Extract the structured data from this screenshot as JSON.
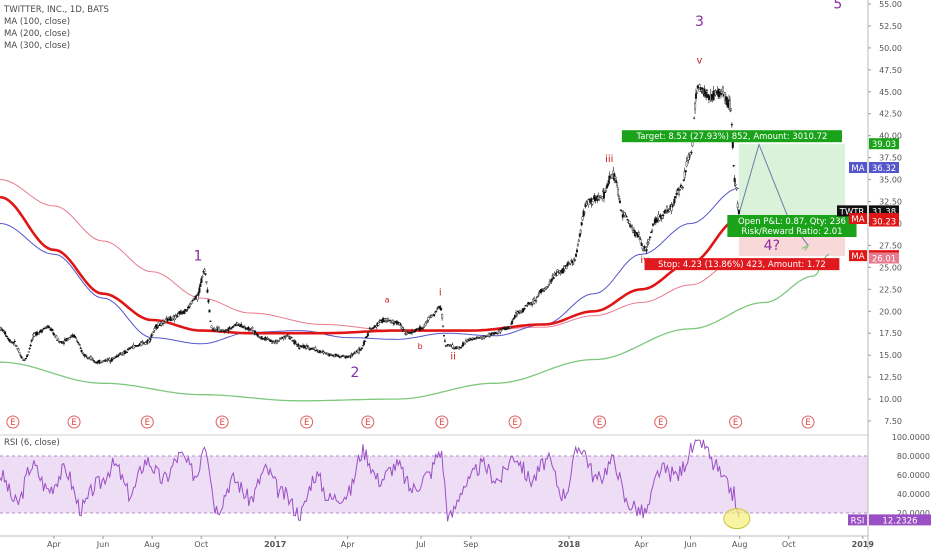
{
  "legend": {
    "title": "TWITTER, INC., 1D, BATS",
    "ma100": "MA (100, close)",
    "ma200": "MA (200, close)",
    "ma300": "MA (300, close)",
    "rsi": "RSI (6, close)"
  },
  "colors": {
    "candle": "#111111",
    "ma100": "#5555cc",
    "ma200": "#e01616",
    "ma300": "#e87b8f",
    "long_ma": "#7ec87e",
    "wave": "#8a2ea2",
    "subwave": "#c81a1a",
    "rsi": "#9a4fc4",
    "target_bg": "#1aa31a",
    "stop_bg": "#e0191e"
  },
  "chart_data": {
    "type": "line",
    "price_axis": {
      "min": 7.5,
      "max": 55.0,
      "ticks": [
        "55.00",
        "52.50",
        "50.00",
        "47.50",
        "45.00",
        "42.50",
        "40.00",
        "37.50",
        "35.00",
        "32.50",
        "30.00",
        "27.50",
        "25.00",
        "22.50",
        "20.00",
        "17.50",
        "15.00",
        "12.50",
        "10.00",
        "7.50"
      ]
    },
    "rsi_axis": {
      "min": 0,
      "max": 100,
      "ticks": [
        "100.0000",
        "80.0000",
        "60.0000",
        "40.0000",
        "20.0000"
      ],
      "band": [
        20,
        80
      ]
    },
    "x_axis": {
      "start": "2016-01-25",
      "end": "2019-01-05",
      "ticks": [
        {
          "label": "Apr",
          "date": "2016-04-01"
        },
        {
          "label": "Jun",
          "date": "2016-06-01"
        },
        {
          "label": "Aug",
          "date": "2016-08-01"
        },
        {
          "label": "Oct",
          "date": "2016-10-01"
        },
        {
          "label": "2017",
          "date": "2017-01-01"
        },
        {
          "label": "Apr",
          "date": "2017-04-01"
        },
        {
          "label": "Jul",
          "date": "2017-07-01"
        },
        {
          "label": "Sep",
          "date": "2017-09-01"
        },
        {
          "label": "2018",
          "date": "2018-01-01"
        },
        {
          "label": "Apr",
          "date": "2018-04-01"
        },
        {
          "label": "Jun",
          "date": "2018-06-01"
        },
        {
          "label": "Aug",
          "date": "2018-08-01"
        },
        {
          "label": "Oct",
          "date": "2018-10-01"
        },
        {
          "label": "2019",
          "date": "2019-01-01"
        }
      ]
    },
    "price_series": {
      "name": "TWTR",
      "points": [
        [
          "2016-01-25",
          18.0
        ],
        [
          "2016-02-10",
          16.5
        ],
        [
          "2016-02-24",
          14.5
        ],
        [
          "2016-03-10",
          17.5
        ],
        [
          "2016-03-24",
          18.2
        ],
        [
          "2016-04-10",
          16.5
        ],
        [
          "2016-04-25",
          17.2
        ],
        [
          "2016-05-10",
          15.0
        ],
        [
          "2016-05-25",
          14.2
        ],
        [
          "2016-06-10",
          14.5
        ],
        [
          "2016-06-25",
          15.2
        ],
        [
          "2016-07-10",
          16.0
        ],
        [
          "2016-07-25",
          16.5
        ],
        [
          "2016-08-10",
          18.5
        ],
        [
          "2016-08-25",
          19.2
        ],
        [
          "2016-09-10",
          20.0
        ],
        [
          "2016-09-25",
          21.5
        ],
        [
          "2016-10-05",
          24.5
        ],
        [
          "2016-10-15",
          18.0
        ],
        [
          "2016-10-30",
          17.8
        ],
        [
          "2016-11-15",
          18.5
        ],
        [
          "2016-11-30",
          18.0
        ],
        [
          "2016-12-15",
          17.0
        ],
        [
          "2017-01-01",
          16.5
        ],
        [
          "2017-01-15",
          17.2
        ],
        [
          "2017-02-01",
          16.0
        ],
        [
          "2017-02-15",
          15.8
        ],
        [
          "2017-03-01",
          15.3
        ],
        [
          "2017-03-15",
          15.0
        ],
        [
          "2017-04-01",
          14.8
        ],
        [
          "2017-04-15",
          15.5
        ],
        [
          "2017-05-01",
          18.0
        ],
        [
          "2017-05-15",
          19.0
        ],
        [
          "2017-06-01",
          18.7
        ],
        [
          "2017-06-15",
          17.5
        ],
        [
          "2017-07-01",
          18.0
        ],
        [
          "2017-07-15",
          19.5
        ],
        [
          "2017-07-25",
          20.5
        ],
        [
          "2017-08-01",
          16.2
        ],
        [
          "2017-08-15",
          15.8
        ],
        [
          "2017-09-01",
          16.8
        ],
        [
          "2017-09-15",
          17.0
        ],
        [
          "2017-10-01",
          17.5
        ],
        [
          "2017-10-15",
          18.0
        ],
        [
          "2017-11-01",
          20.0
        ],
        [
          "2017-11-15",
          21.0
        ],
        [
          "2017-12-01",
          22.5
        ],
        [
          "2017-12-20",
          24.5
        ],
        [
          "2018-01-05",
          25.5
        ],
        [
          "2018-01-25",
          32.5
        ],
        [
          "2018-02-10",
          33.0
        ],
        [
          "2018-02-25",
          35.5
        ],
        [
          "2018-03-10",
          31.0
        ],
        [
          "2018-03-25",
          29.0
        ],
        [
          "2018-04-05",
          27.0
        ],
        [
          "2018-04-20",
          30.5
        ],
        [
          "2018-05-05",
          31.5
        ],
        [
          "2018-05-20",
          34.0
        ],
        [
          "2018-06-01",
          38.0
        ],
        [
          "2018-06-10",
          45.5
        ],
        [
          "2018-06-25",
          44.5
        ],
        [
          "2018-07-10",
          45.0
        ],
        [
          "2018-07-20",
          43.5
        ],
        [
          "2018-07-27",
          34.5
        ],
        [
          "2018-07-31",
          31.38
        ]
      ]
    },
    "rsi_series": {
      "name": "RSI",
      "last": "12.2326",
      "points": [
        [
          "2016-01-25",
          60
        ],
        [
          "2016-02-15",
          30
        ],
        [
          "2016-03-05",
          70
        ],
        [
          "2016-03-25",
          45
        ],
        [
          "2016-04-15",
          65
        ],
        [
          "2016-05-05",
          25
        ],
        [
          "2016-05-25",
          50
        ],
        [
          "2016-06-15",
          70
        ],
        [
          "2016-07-05",
          40
        ],
        [
          "2016-07-25",
          75
        ],
        [
          "2016-08-15",
          55
        ],
        [
          "2016-09-05",
          80
        ],
        [
          "2016-09-25",
          60
        ],
        [
          "2016-10-05",
          95
        ],
        [
          "2016-10-20",
          25
        ],
        [
          "2016-11-10",
          55
        ],
        [
          "2016-12-01",
          35
        ],
        [
          "2016-12-20",
          65
        ],
        [
          "2017-01-10",
          40
        ],
        [
          "2017-02-01",
          20
        ],
        [
          "2017-02-20",
          60
        ],
        [
          "2017-03-10",
          35
        ],
        [
          "2017-04-01",
          40
        ],
        [
          "2017-04-20",
          85
        ],
        [
          "2017-05-10",
          55
        ],
        [
          "2017-06-01",
          70
        ],
        [
          "2017-06-20",
          45
        ],
        [
          "2017-07-10",
          60
        ],
        [
          "2017-07-25",
          85
        ],
        [
          "2017-08-05",
          15
        ],
        [
          "2017-08-25",
          50
        ],
        [
          "2017-09-15",
          70
        ],
        [
          "2017-10-05",
          55
        ],
        [
          "2017-10-25",
          80
        ],
        [
          "2017-11-15",
          55
        ],
        [
          "2017-12-05",
          75
        ],
        [
          "2017-12-25",
          40
        ],
        [
          "2018-01-15",
          90
        ],
        [
          "2018-02-05",
          55
        ],
        [
          "2018-02-25",
          75
        ],
        [
          "2018-03-15",
          30
        ],
        [
          "2018-04-05",
          20
        ],
        [
          "2018-04-25",
          65
        ],
        [
          "2018-05-15",
          60
        ],
        [
          "2018-06-05",
          88
        ],
        [
          "2018-06-15",
          95
        ],
        [
          "2018-07-01",
          70
        ],
        [
          "2018-07-15",
          50
        ],
        [
          "2018-07-25",
          40
        ],
        [
          "2018-07-31",
          12
        ]
      ]
    },
    "ma100": {
      "name": "MA (100, close)",
      "points": [
        [
          "2016-01-25",
          30.0
        ],
        [
          "2016-04-01",
          26.5
        ],
        [
          "2016-06-01",
          21.5
        ],
        [
          "2016-08-01",
          17.0
        ],
        [
          "2016-10-01",
          16.3
        ],
        [
          "2016-12-01",
          17.6
        ],
        [
          "2017-02-01",
          17.8
        ],
        [
          "2017-04-01",
          17.0
        ],
        [
          "2017-06-01",
          16.8
        ],
        [
          "2017-08-01",
          17.5
        ],
        [
          "2017-10-01",
          17.2
        ],
        [
          "2017-12-01",
          18.5
        ],
        [
          "2018-02-01",
          22.0
        ],
        [
          "2018-04-01",
          26.5
        ],
        [
          "2018-06-01",
          30.0
        ],
        [
          "2018-07-31",
          34.0
        ]
      ]
    },
    "ma200": {
      "name": "MA (200, close)",
      "points": [
        [
          "2016-01-25",
          33.0
        ],
        [
          "2016-04-01",
          27.0
        ],
        [
          "2016-06-01",
          22.0
        ],
        [
          "2016-08-01",
          19.0
        ],
        [
          "2016-10-01",
          17.8
        ],
        [
          "2016-12-01",
          17.5
        ],
        [
          "2017-03-01",
          17.5
        ],
        [
          "2017-06-01",
          17.8
        ],
        [
          "2017-09-01",
          17.8
        ],
        [
          "2017-12-01",
          18.5
        ],
        [
          "2018-02-01",
          20.0
        ],
        [
          "2018-04-01",
          22.5
        ],
        [
          "2018-06-01",
          25.5
        ],
        [
          "2018-07-31",
          30.5
        ]
      ]
    },
    "ma300": {
      "name": "MA (300, close)",
      "points": [
        [
          "2016-01-25",
          35.0
        ],
        [
          "2016-04-01",
          32.0
        ],
        [
          "2016-06-01",
          28.0
        ],
        [
          "2016-08-01",
          24.5
        ],
        [
          "2016-10-01",
          21.5
        ],
        [
          "2016-12-01",
          19.8
        ],
        [
          "2017-03-01",
          18.5
        ],
        [
          "2017-06-01",
          17.8
        ],
        [
          "2017-09-01",
          17.8
        ],
        [
          "2017-12-01",
          18.2
        ],
        [
          "2018-02-01",
          19.5
        ],
        [
          "2018-04-01",
          21.0
        ],
        [
          "2018-06-01",
          23.0
        ],
        [
          "2018-07-31",
          26.0
        ]
      ]
    },
    "long_ma": {
      "points": [
        [
          "2016-01-25",
          14.2
        ],
        [
          "2016-06-01",
          11.8
        ],
        [
          "2016-10-01",
          10.5
        ],
        [
          "2017-02-01",
          9.8
        ],
        [
          "2017-06-01",
          10.0
        ],
        [
          "2017-10-01",
          11.8
        ],
        [
          "2018-02-01",
          14.5
        ],
        [
          "2018-06-01",
          18.0
        ],
        [
          "2018-09-01",
          21.0
        ],
        [
          "2018-11-01",
          24.0
        ],
        [
          "2018-11-20",
          26.5
        ]
      ]
    },
    "projection": {
      "points": [
        [
          "2018-07-31",
          31.0
        ],
        [
          "2018-08-25",
          39.0
        ],
        [
          "2018-10-01",
          30.5
        ],
        [
          "2018-10-25",
          27.5
        ]
      ]
    },
    "waves": [
      {
        "label": "1",
        "date": "2016-09-27",
        "price": 25.8,
        "size": "big"
      },
      {
        "label": "2",
        "date": "2017-04-10",
        "price": 12.5,
        "size": "big"
      },
      {
        "label": "3",
        "date": "2018-06-12",
        "price": 52.5,
        "size": "big"
      },
      {
        "label": "4?",
        "date": "2018-09-10",
        "price": 27.0,
        "size": "big"
      },
      {
        "label": "5",
        "date": "2018-12-01",
        "price": 54.5,
        "size": "big"
      },
      {
        "label": "i",
        "date": "2017-07-25",
        "price": 21.8,
        "size": "small"
      },
      {
        "label": "ii",
        "date": "2017-08-10",
        "price": 14.5,
        "size": "small"
      },
      {
        "label": "iii",
        "date": "2018-02-20",
        "price": 37.0,
        "size": "small"
      },
      {
        "label": "iv",
        "date": "2018-04-05",
        "price": 25.5,
        "size": "small"
      },
      {
        "label": "v",
        "date": "2018-06-12",
        "price": 48.2,
        "size": "small"
      },
      {
        "label": "a",
        "date": "2017-05-20",
        "price": 21.0,
        "size": "tiny"
      },
      {
        "label": "b",
        "date": "2017-06-30",
        "price": 15.7,
        "size": "tiny"
      },
      {
        "label": "a",
        "date": "2018-07-31",
        "price": 29.3,
        "size": "tinyblack"
      },
      {
        "label": "c",
        "date": "2018-09-25",
        "price": 30.2,
        "size": "tinyblack"
      }
    ],
    "earnings_dates": [
      "2016-02-10",
      "2016-04-26",
      "2016-07-26",
      "2016-10-27",
      "2017-02-09",
      "2017-04-26",
      "2017-07-27",
      "2017-10-26",
      "2018-02-08",
      "2018-04-25",
      "2018-07-27",
      "2018-10-25"
    ],
    "earnings_label": "E",
    "position": {
      "entry": 30.51,
      "target": 39.03,
      "stop": 26.28,
      "start": "2018-07-31",
      "end": "2018-12-10",
      "target_text": "Target: 8.52 (27.93%) 852, Amount: 3010.72",
      "open_text": "Open P&L: 0.87, Qty: 236",
      "rr_text": "Risk/Reward Ratio: 2.01",
      "stop_text": "Stop: 4.23 (13.86%) 423, Amount: 1.72"
    },
    "price_labels": [
      {
        "text": "39.03",
        "price": 39.03,
        "color": "#1aa31a",
        "tag": ""
      },
      {
        "text": "36.32",
        "price": 36.32,
        "color": "#5555cc",
        "tag": "MA"
      },
      {
        "text": "31.38",
        "price": 31.38,
        "color": "#111111",
        "tag": "TWTR"
      },
      {
        "text": "30.51",
        "price": 30.51,
        "color": "#e01616",
        "tag": "MA"
      },
      {
        "text": "30.23",
        "price": 30.23,
        "color": "#e01616",
        "tag": ""
      },
      {
        "text": "26.28",
        "price": 26.28,
        "color": "#e01616",
        "tag": "MA"
      },
      {
        "text": "26.01",
        "price": 26.01,
        "color": "#e87b8f",
        "tag": ""
      }
    ],
    "rsi_label": {
      "text": "12.2326",
      "tag": "RSI",
      "color": "#9a4fc4"
    }
  }
}
